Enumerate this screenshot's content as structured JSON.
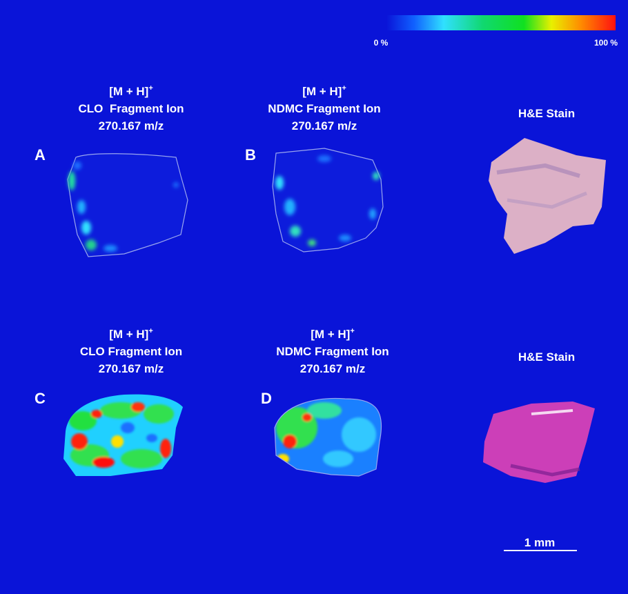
{
  "colorbar": {
    "min_label": "0 %",
    "max_label": "100 %"
  },
  "panels": [
    {
      "letter": "A",
      "ion": "[M + H]",
      "charge": "+",
      "name": "CLO  Fragment Ion",
      "mz": "270.167 m/z"
    },
    {
      "letter": "B",
      "ion": "[M + H]",
      "charge": "+",
      "name": "NDMC Fragment Ion",
      "mz": "270.167 m/z"
    },
    {
      "letter": "C",
      "ion": "[M + H]",
      "charge": "+",
      "name": "CLO Fragment Ion",
      "mz": "270.167 m/z"
    },
    {
      "letter": "D",
      "ion": "[M + H]",
      "charge": "+",
      "name": "NDMC Fragment Ion",
      "mz": "270.167 m/z"
    }
  ],
  "stains": [
    {
      "label": "H&E Stain"
    },
    {
      "label": "H&E Stain"
    }
  ],
  "scale_bar": {
    "label": "1 mm"
  }
}
